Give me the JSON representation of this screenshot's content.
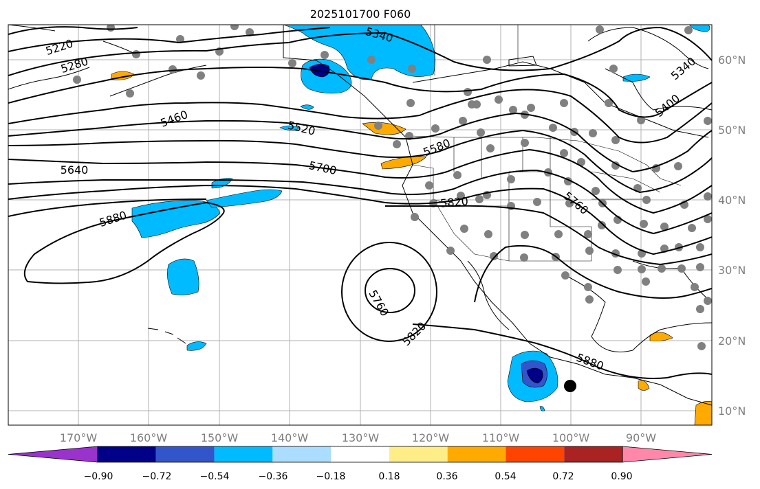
{
  "title": "2025101700 F060",
  "map": {
    "lon_labels": [
      "170°W",
      "160°W",
      "150°W",
      "140°W",
      "130°W",
      "120°W",
      "110°W",
      "100°W",
      "90°W"
    ],
    "lat_labels": [
      "60°N",
      "50°N",
      "40°N",
      "30°N",
      "20°N",
      "10°N"
    ],
    "contour_labels": [
      "5220",
      "5280",
      "5340",
      "5340",
      "5400",
      "5460",
      "5520",
      "5580",
      "5640",
      "5700",
      "5760",
      "5820",
      "5880",
      "5760",
      "5820",
      "5880"
    ],
    "station_dot_color": "#808080",
    "contour_color": "#000000"
  },
  "colorbar": {
    "tick_labels": [
      "−0.90",
      "−0.72",
      "−0.54",
      "−0.36",
      "−0.18",
      "0.18",
      "0.36",
      "0.54",
      "0.72",
      "0.90"
    ],
    "colors": [
      "#9933cc",
      "#000088",
      "#3355cc",
      "#00bbff",
      "#aaddff",
      "#ffffff",
      "#ffee88",
      "#ffaa00",
      "#ff4400",
      "#aa2222",
      "#ff88aa"
    ]
  }
}
